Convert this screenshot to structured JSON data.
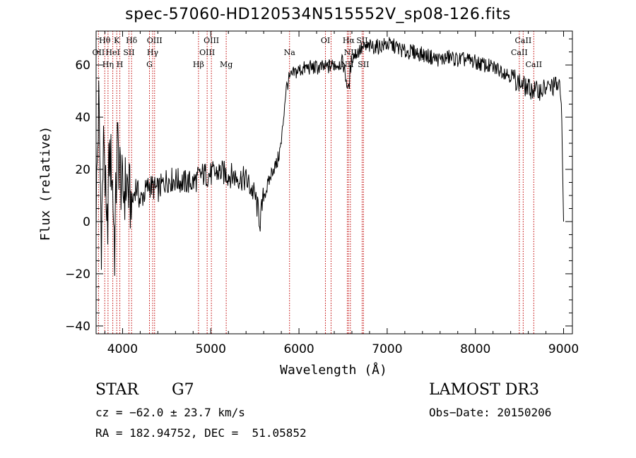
{
  "chart_data": {
    "type": "line",
    "title": "spec-57060-HD120534N515552V_sp08-126.fits",
    "xlabel": "Wavelength (Å)",
    "ylabel": "Flux (relative)",
    "xlim": [
      3700,
      9100
    ],
    "ylim": [
      -43,
      73
    ],
    "xticks": [
      4000,
      5000,
      6000,
      7000,
      8000,
      9000
    ],
    "yticks": [
      -40,
      -20,
      0,
      20,
      40,
      60
    ],
    "series": [
      {
        "name": "flux",
        "x": [
          3700,
          3730,
          3760,
          3790,
          3820,
          3850,
          3880,
          3910,
          3940,
          3970,
          4000,
          4050,
          4100,
          4150,
          4200,
          4300,
          4400,
          4500,
          4600,
          4700,
          4800,
          4900,
          5000,
          5100,
          5200,
          5300,
          5400,
          5500,
          5560,
          5600,
          5650,
          5700,
          5750,
          5800,
          5850,
          5880,
          5900,
          5950,
          6000,
          6100,
          6200,
          6300,
          6400,
          6500,
          6560,
          6600,
          6700,
          6800,
          6900,
          7000,
          7100,
          7200,
          7300,
          7400,
          7500,
          7600,
          7700,
          7800,
          7900,
          8000,
          8100,
          8200,
          8300,
          8400,
          8500,
          8600,
          8700,
          8800,
          8900,
          8950,
          8980,
          9000
        ],
        "values": [
          5,
          45,
          -5,
          35,
          -10,
          25,
          20,
          -10,
          30,
          20,
          10,
          15,
          5,
          14,
          8,
          14,
          12,
          16,
          16,
          15,
          15,
          18,
          18,
          19,
          18,
          17,
          16,
          10,
          0,
          10,
          14,
          20,
          22,
          30,
          50,
          54,
          55,
          57,
          58,
          59,
          59,
          59,
          60,
          61,
          50,
          63,
          66,
          67,
          67,
          68,
          67,
          65,
          65,
          64,
          63,
          62,
          63,
          62,
          62,
          61,
          60,
          59,
          58,
          56,
          53,
          51,
          50,
          51,
          52,
          52,
          42,
          0
        ]
      }
    ],
    "lines": [
      {
        "label": "OII",
        "wavelength": 3727,
        "row": 2
      },
      {
        "label": "Hθ",
        "wavelength": 3798,
        "row": 1
      },
      {
        "label": "Hη",
        "wavelength": 3835,
        "row": 3
      },
      {
        "label": "HeI",
        "wavelength": 3889,
        "row": 2
      },
      {
        "label": "K",
        "wavelength": 3934,
        "row": 1
      },
      {
        "label": "H",
        "wavelength": 3969,
        "row": 3
      },
      {
        "label": "SII",
        "wavelength": 4072,
        "row": 2
      },
      {
        "label": "Hδ",
        "wavelength": 4102,
        "row": 1
      },
      {
        "label": "OIII",
        "wavelength": 4363,
        "row": 1
      },
      {
        "label": "Hγ",
        "wavelength": 4341,
        "row": 2
      },
      {
        "label": "G",
        "wavelength": 4305,
        "row": 3
      },
      {
        "label": "Hβ",
        "wavelength": 4861,
        "row": 3
      },
      {
        "label": "OIII",
        "wavelength": 4959,
        "row": 2
      },
      {
        "label": "OIII",
        "wavelength": 5007,
        "row": 1
      },
      {
        "label": "Mg",
        "wavelength": 5175,
        "row": 3
      },
      {
        "label": "Na",
        "wavelength": 5893,
        "row": 2
      },
      {
        "label": "OI",
        "wavelength": 6300,
        "row": 1
      },
      {
        "label": "OI",
        "wavelength": 6364,
        "row": 3
      },
      {
        "label": "NII",
        "wavelength": 6548,
        "row": 3
      },
      {
        "label": "Hα",
        "wavelength": 6563,
        "row": 1
      },
      {
        "label": "NII",
        "wavelength": 6583,
        "row": 2
      },
      {
        "label": "SII",
        "wavelength": 6716,
        "row": 1
      },
      {
        "label": "SII",
        "wavelength": 6731,
        "row": 3
      },
      {
        "label": "CaII",
        "wavelength": 8498,
        "row": 2
      },
      {
        "label": "CaII",
        "wavelength": 8542,
        "row": 1
      },
      {
        "label": "CaII",
        "wavelength": 8662,
        "row": 3
      }
    ]
  },
  "info": {
    "object_type": "STAR",
    "subclass": "G7",
    "survey": "LAMOST DR3",
    "cz": "cz = −62.0 ± 23.7 km/s",
    "obs_date": "Obs−Date: 20150206",
    "coords": "RA = 182.94752, DEC =  51.05852"
  }
}
